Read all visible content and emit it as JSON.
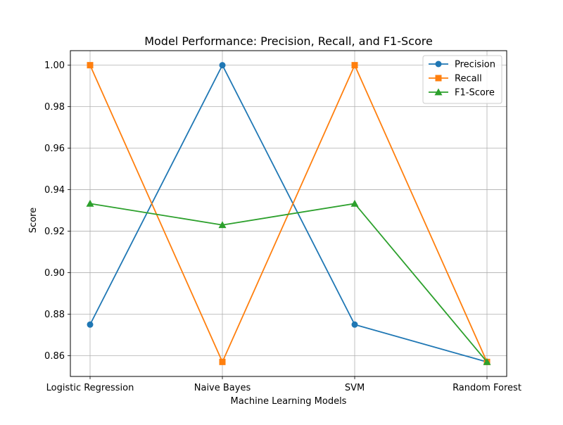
{
  "chart_data": {
    "type": "line",
    "title": "Model Performance: Precision, Recall, and F1-Score",
    "xlabel": "Machine Learning Models",
    "ylabel": "Score",
    "categories": [
      "Logistic Regression",
      "Naive Bayes",
      "SVM",
      "Random Forest"
    ],
    "ylim": [
      0.85,
      1.007
    ],
    "yticks": [
      0.86,
      0.88,
      0.9,
      0.92,
      0.94,
      0.96,
      0.98,
      1.0
    ],
    "ytick_labels": [
      "0.86",
      "0.88",
      "0.90",
      "0.92",
      "0.94",
      "0.96",
      "0.98",
      "1.00"
    ],
    "grid": true,
    "legend_position": "top-right",
    "series": [
      {
        "name": "Precision",
        "marker": "circle",
        "color": "#1f77b4",
        "values": [
          0.875,
          1.0,
          0.875,
          0.857
        ]
      },
      {
        "name": "Recall",
        "marker": "square",
        "color": "#ff7f0e",
        "values": [
          1.0,
          0.857,
          1.0,
          0.857
        ]
      },
      {
        "name": "F1-Score",
        "marker": "triangle",
        "color": "#2ca02c",
        "values": [
          0.9333,
          0.923,
          0.9333,
          0.857
        ]
      }
    ]
  }
}
